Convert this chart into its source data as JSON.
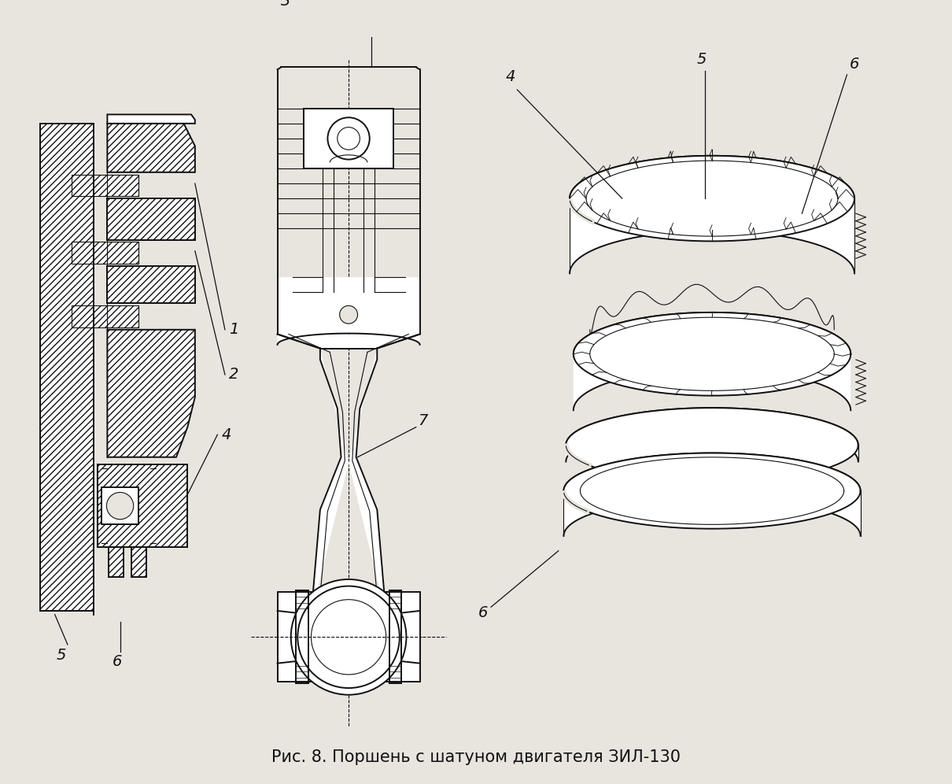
{
  "caption": "Рис. 8. Поршень с шатуном двигателя ЗИЛ-130",
  "bg_color": "#e8e4de",
  "line_color": "#111111",
  "caption_fontsize": 15
}
